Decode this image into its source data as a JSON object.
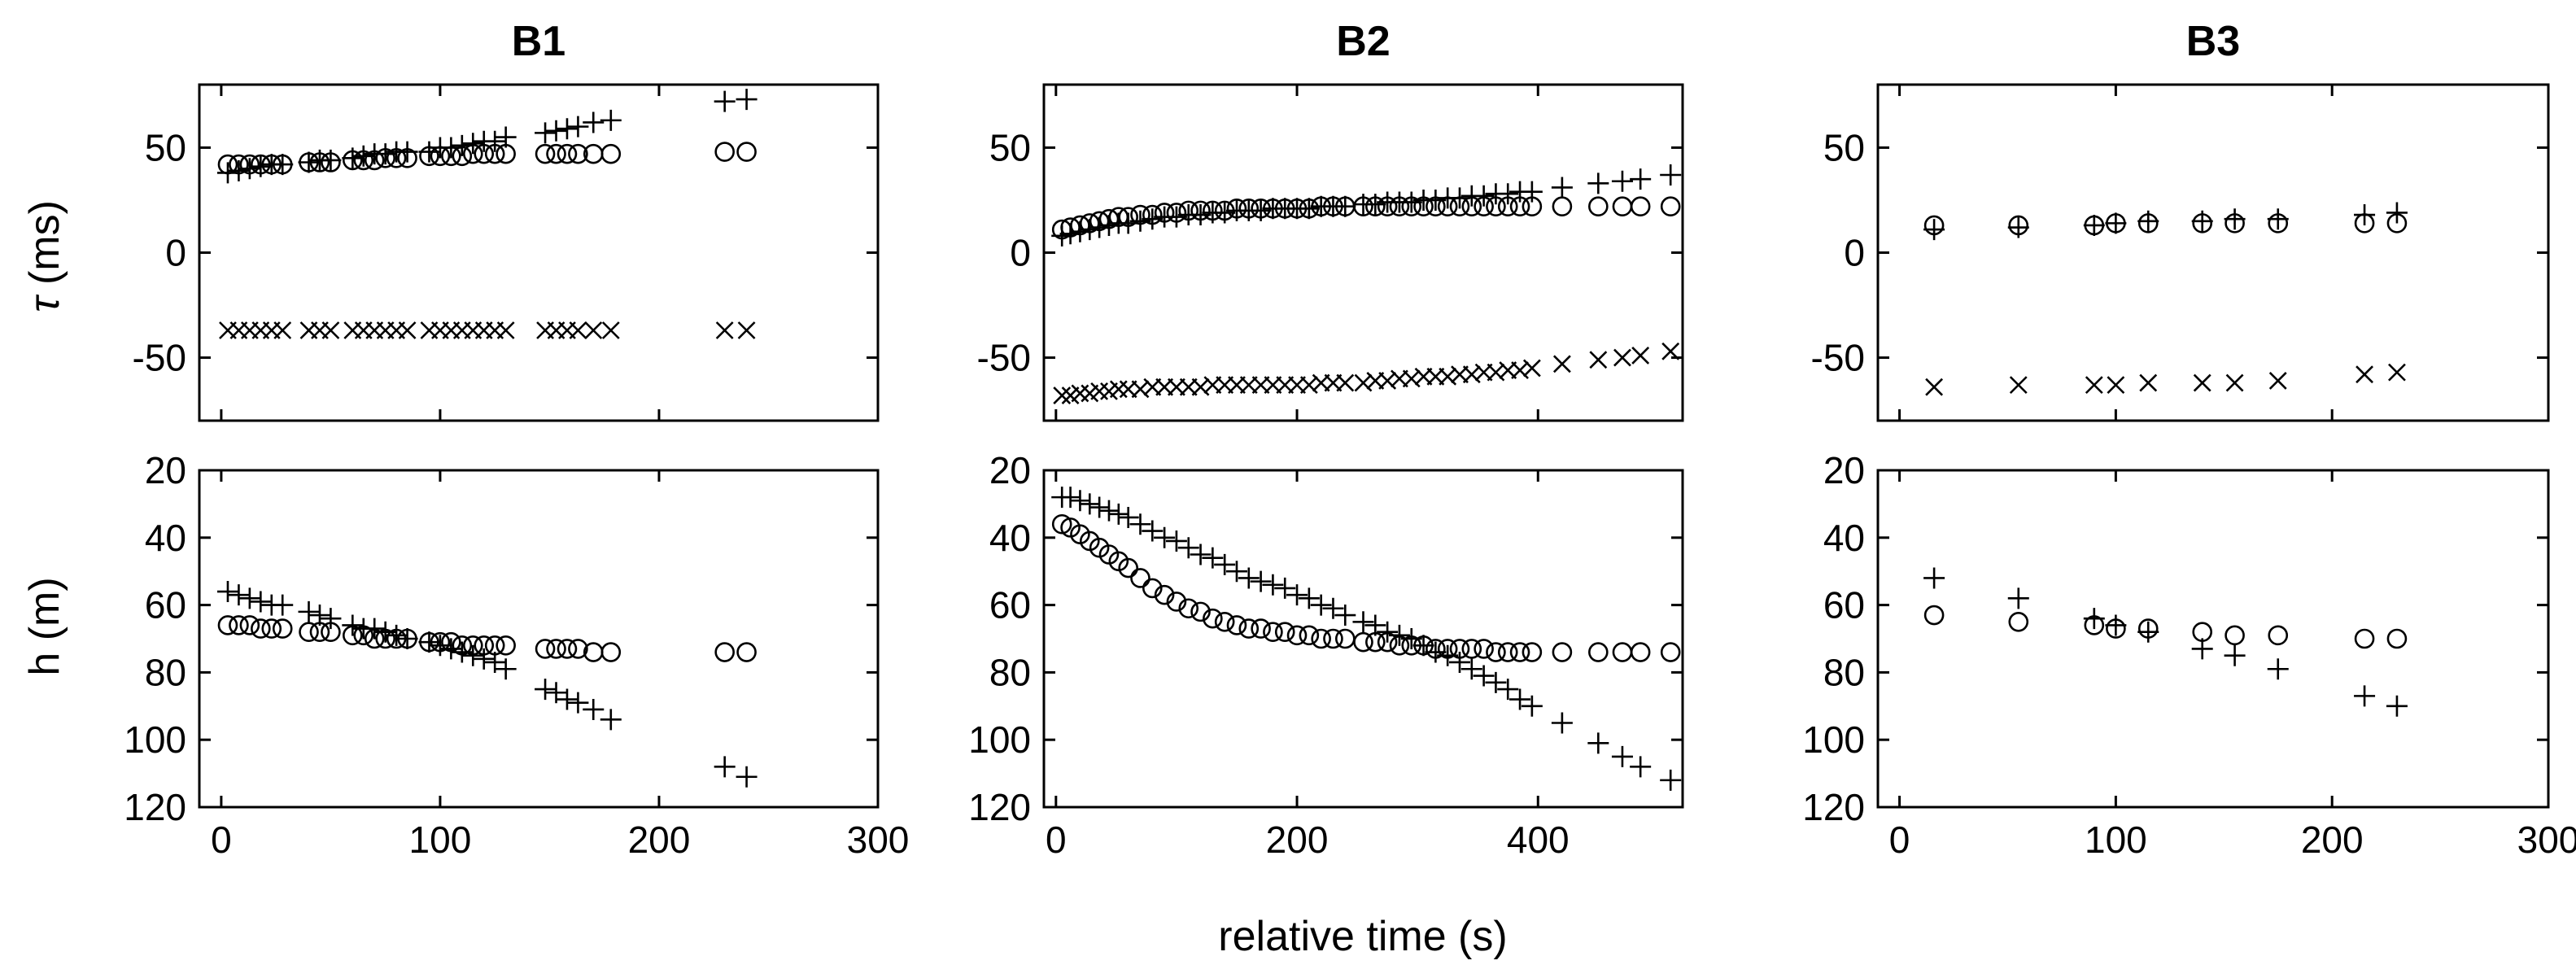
{
  "figure": {
    "xlabel": "relative time (s)",
    "panel_titles": [
      "B1",
      "B2",
      "B3"
    ],
    "row_ylabels": [
      "τ (ms)",
      "h (m)"
    ]
  },
  "chart_data": [
    {
      "id": "B1-tau",
      "type": "scatter",
      "title": "B1",
      "ylabel": "τ (ms)",
      "xlabel": "",
      "xlim": [
        -10,
        300
      ],
      "ylim": [
        -80,
        80
      ],
      "y_reversed": false,
      "xticks": [
        0,
        100,
        200,
        300
      ],
      "yticks": [
        50,
        0,
        -50
      ],
      "show_xtick_labels": false,
      "series": [
        {
          "name": "+",
          "marker": "plus",
          "x": [
            3,
            8,
            13,
            18,
            23,
            28,
            40,
            45,
            50,
            60,
            65,
            70,
            75,
            80,
            85,
            95,
            100,
            105,
            110,
            115,
            120,
            125,
            130,
            148,
            153,
            158,
            163,
            170,
            178,
            230,
            240
          ],
          "y": [
            38,
            39,
            40,
            41,
            42,
            42,
            43,
            44,
            44,
            45,
            46,
            47,
            47,
            48,
            48,
            48,
            50,
            50,
            51,
            52,
            53,
            53,
            55,
            57,
            58,
            59,
            60,
            62,
            63,
            72,
            73
          ]
        },
        {
          "name": "o",
          "marker": "circle",
          "x": [
            3,
            8,
            13,
            18,
            23,
            28,
            40,
            45,
            50,
            60,
            65,
            70,
            75,
            80,
            85,
            95,
            100,
            105,
            110,
            115,
            120,
            125,
            130,
            148,
            153,
            158,
            163,
            170,
            178,
            230,
            240
          ],
          "y": [
            42,
            42,
            42,
            42,
            42,
            42,
            43,
            43,
            43,
            44,
            44,
            44,
            45,
            45,
            45,
            46,
            46,
            46,
            46,
            47,
            47,
            47,
            47,
            47,
            47,
            47,
            47,
            47,
            47,
            48,
            48
          ]
        },
        {
          "name": "x",
          "marker": "cross",
          "x": [
            3,
            8,
            13,
            18,
            23,
            28,
            40,
            45,
            50,
            60,
            65,
            70,
            75,
            80,
            85,
            95,
            100,
            105,
            110,
            115,
            120,
            125,
            130,
            148,
            153,
            158,
            163,
            170,
            178,
            230,
            240
          ],
          "y": [
            -37,
            -37,
            -37,
            -37,
            -37,
            -37,
            -37,
            -37,
            -37,
            -37,
            -37,
            -37,
            -37,
            -37,
            -37,
            -37,
            -37,
            -37,
            -37,
            -37,
            -37,
            -37,
            -37,
            -37,
            -37,
            -37,
            -37,
            -37,
            -37,
            -37,
            -37
          ]
        }
      ]
    },
    {
      "id": "B2-tau",
      "type": "scatter",
      "title": "B2",
      "ylabel": "",
      "xlabel": "",
      "xlim": [
        -10,
        520
      ],
      "ylim": [
        -80,
        80
      ],
      "y_reversed": false,
      "xticks": [
        0,
        200,
        400
      ],
      "yticks": [
        50,
        0,
        -50
      ],
      "show_xtick_labels": false,
      "series": [
        {
          "name": "+",
          "marker": "plus",
          "x": [
            5,
            12,
            20,
            28,
            36,
            44,
            52,
            60,
            70,
            80,
            90,
            100,
            110,
            120,
            130,
            140,
            150,
            160,
            170,
            180,
            190,
            200,
            210,
            220,
            230,
            240,
            255,
            265,
            275,
            285,
            295,
            305,
            315,
            325,
            335,
            345,
            355,
            365,
            375,
            385,
            395,
            420,
            450,
            470,
            485,
            510
          ],
          "y": [
            8,
            9,
            10,
            11,
            12,
            13,
            14,
            14,
            15,
            16,
            17,
            17,
            18,
            18,
            19,
            19,
            20,
            20,
            20,
            21,
            21,
            21,
            21,
            22,
            22,
            22,
            23,
            23,
            24,
            24,
            24,
            25,
            25,
            26,
            26,
            27,
            27,
            28,
            28,
            29,
            29,
            31,
            33,
            34,
            35,
            37
          ]
        },
        {
          "name": "o",
          "marker": "circle",
          "x": [
            5,
            12,
            20,
            28,
            36,
            44,
            52,
            60,
            70,
            80,
            90,
            100,
            110,
            120,
            130,
            140,
            150,
            160,
            170,
            180,
            190,
            200,
            210,
            220,
            230,
            240,
            255,
            265,
            275,
            285,
            295,
            305,
            315,
            325,
            335,
            345,
            355,
            365,
            375,
            385,
            395,
            420,
            450,
            470,
            485,
            510
          ],
          "y": [
            11,
            12,
            13,
            14,
            15,
            16,
            17,
            17,
            18,
            18,
            19,
            19,
            20,
            20,
            20,
            20,
            21,
            21,
            21,
            21,
            21,
            21,
            21,
            22,
            22,
            22,
            22,
            22,
            22,
            22,
            22,
            22,
            22,
            22,
            22,
            22,
            22,
            22,
            22,
            22,
            22,
            22,
            22,
            22,
            22,
            22
          ]
        },
        {
          "name": "x",
          "marker": "cross",
          "x": [
            5,
            12,
            20,
            28,
            36,
            44,
            52,
            60,
            70,
            80,
            90,
            100,
            110,
            120,
            130,
            140,
            150,
            160,
            170,
            180,
            190,
            200,
            210,
            220,
            230,
            240,
            255,
            265,
            275,
            285,
            295,
            305,
            315,
            325,
            335,
            345,
            355,
            365,
            375,
            385,
            395,
            420,
            450,
            470,
            485,
            510
          ],
          "y": [
            -68,
            -68,
            -67,
            -67,
            -66,
            -66,
            -65,
            -65,
            -65,
            -64,
            -64,
            -64,
            -64,
            -64,
            -63,
            -63,
            -63,
            -63,
            -63,
            -63,
            -63,
            -63,
            -63,
            -62,
            -62,
            -62,
            -62,
            -61,
            -61,
            -60,
            -60,
            -59,
            -59,
            -59,
            -58,
            -58,
            -57,
            -57,
            -56,
            -56,
            -55,
            -53,
            -51,
            -50,
            -49,
            -47
          ]
        }
      ]
    },
    {
      "id": "B3-tau",
      "type": "scatter",
      "title": "B3",
      "ylabel": "",
      "xlabel": "",
      "xlim": [
        -10,
        300
      ],
      "ylim": [
        -80,
        80
      ],
      "y_reversed": false,
      "xticks": [
        0,
        100,
        200,
        300
      ],
      "yticks": [
        50,
        0,
        -50
      ],
      "show_xtick_labels": false,
      "series": [
        {
          "name": "+",
          "marker": "plus",
          "x": [
            16,
            55,
            90,
            100,
            115,
            140,
            155,
            175,
            215,
            230
          ],
          "y": [
            11,
            12,
            13,
            14,
            15,
            15,
            16,
            16,
            18,
            19
          ]
        },
        {
          "name": "o",
          "marker": "circle",
          "x": [
            16,
            55,
            90,
            100,
            115,
            140,
            155,
            175,
            215,
            230
          ],
          "y": [
            13,
            13,
            13,
            14,
            14,
            14,
            14,
            14,
            14,
            14
          ]
        },
        {
          "name": "x",
          "marker": "cross",
          "x": [
            16,
            55,
            90,
            100,
            115,
            140,
            155,
            175,
            215,
            230
          ],
          "y": [
            -64,
            -63,
            -63,
            -63,
            -62,
            -62,
            -62,
            -61,
            -58,
            -57
          ]
        }
      ]
    },
    {
      "id": "B1-h",
      "type": "scatter",
      "title": "",
      "ylabel": "h (m)",
      "xlabel": "",
      "xlim": [
        -10,
        300
      ],
      "ylim": [
        20,
        120
      ],
      "y_reversed": true,
      "xticks": [
        0,
        100,
        200,
        300
      ],
      "yticks": [
        20,
        40,
        60,
        80,
        100,
        120
      ],
      "show_xtick_labels": true,
      "xtick_labels": [
        "0",
        "100",
        "200",
        "300"
      ],
      "series": [
        {
          "name": "+",
          "marker": "plus",
          "x": [
            3,
            8,
            13,
            18,
            23,
            28,
            40,
            45,
            50,
            60,
            65,
            70,
            75,
            80,
            85,
            95,
            100,
            105,
            110,
            115,
            120,
            125,
            130,
            148,
            153,
            158,
            163,
            170,
            178,
            230,
            240
          ],
          "y": [
            56,
            57,
            58,
            59,
            60,
            60,
            62,
            63,
            64,
            66,
            67,
            67,
            68,
            69,
            70,
            71,
            72,
            73,
            74,
            75,
            76,
            77,
            79,
            85,
            86,
            88,
            89,
            91,
            94,
            108,
            111
          ]
        },
        {
          "name": "o",
          "marker": "circle",
          "x": [
            3,
            8,
            13,
            18,
            23,
            28,
            40,
            45,
            50,
            60,
            65,
            70,
            75,
            80,
            85,
            95,
            100,
            105,
            110,
            115,
            120,
            125,
            130,
            148,
            153,
            158,
            163,
            170,
            178,
            230,
            240
          ],
          "y": [
            66,
            66,
            66,
            67,
            67,
            67,
            68,
            68,
            68,
            69,
            69,
            70,
            70,
            70,
            70,
            71,
            71,
            71,
            72,
            72,
            72,
            72,
            72,
            73,
            73,
            73,
            73,
            74,
            74,
            74,
            74
          ]
        }
      ]
    },
    {
      "id": "B2-h",
      "type": "scatter",
      "title": "",
      "ylabel": "",
      "xlabel": "relative time (s)",
      "xlim": [
        -10,
        520
      ],
      "ylim": [
        20,
        120
      ],
      "y_reversed": true,
      "xticks": [
        0,
        200,
        400
      ],
      "yticks": [
        20,
        40,
        60,
        80,
        100,
        120
      ],
      "show_xtick_labels": true,
      "xtick_labels": [
        "0",
        "200",
        "400"
      ],
      "series": [
        {
          "name": "+",
          "marker": "plus",
          "x": [
            5,
            12,
            20,
            28,
            36,
            44,
            52,
            60,
            70,
            80,
            90,
            100,
            110,
            120,
            130,
            140,
            150,
            160,
            170,
            180,
            190,
            200,
            210,
            220,
            230,
            240,
            255,
            265,
            275,
            285,
            295,
            305,
            315,
            325,
            335,
            345,
            355,
            365,
            375,
            385,
            395,
            420,
            450,
            470,
            485,
            510
          ],
          "y": [
            28,
            28,
            29,
            30,
            31,
            32,
            33,
            34,
            36,
            38,
            40,
            41,
            43,
            45,
            46,
            48,
            50,
            52,
            53,
            54,
            55,
            57,
            58,
            60,
            61,
            63,
            65,
            66,
            68,
            69,
            70,
            72,
            74,
            75,
            77,
            79,
            81,
            83,
            85,
            88,
            90,
            95,
            101,
            105,
            108,
            112
          ]
        },
        {
          "name": "o",
          "marker": "circle",
          "x": [
            5,
            12,
            20,
            28,
            36,
            44,
            52,
            60,
            70,
            80,
            90,
            100,
            110,
            120,
            130,
            140,
            150,
            160,
            170,
            180,
            190,
            200,
            210,
            220,
            230,
            240,
            255,
            265,
            275,
            285,
            295,
            305,
            315,
            325,
            335,
            345,
            355,
            365,
            375,
            385,
            395,
            420,
            450,
            470,
            485,
            510
          ],
          "y": [
            36,
            37,
            39,
            41,
            43,
            45,
            47,
            49,
            52,
            55,
            57,
            59,
            61,
            62,
            64,
            65,
            66,
            67,
            67,
            68,
            68,
            69,
            69,
            70,
            70,
            70,
            71,
            71,
            71,
            72,
            72,
            72,
            73,
            73,
            73,
            73,
            73,
            74,
            74,
            74,
            74,
            74,
            74,
            74,
            74,
            74
          ]
        }
      ]
    },
    {
      "id": "B3-h",
      "type": "scatter",
      "title": "",
      "ylabel": "",
      "xlabel": "",
      "xlim": [
        -10,
        300
      ],
      "ylim": [
        20,
        120
      ],
      "y_reversed": true,
      "xticks": [
        0,
        100,
        200,
        300
      ],
      "yticks": [
        20,
        40,
        60,
        80,
        100,
        120
      ],
      "show_xtick_labels": true,
      "xtick_labels": [
        "0",
        "100",
        "200",
        "300"
      ],
      "series": [
        {
          "name": "+",
          "marker": "plus",
          "x": [
            16,
            55,
            90,
            100,
            115,
            140,
            155,
            175,
            215,
            230
          ],
          "y": [
            52,
            58,
            64,
            66,
            68,
            73,
            75,
            79,
            87,
            90
          ]
        },
        {
          "name": "o",
          "marker": "circle",
          "x": [
            16,
            55,
            90,
            100,
            115,
            140,
            155,
            175,
            215,
            230
          ],
          "y": [
            63,
            65,
            66,
            67,
            67,
            68,
            69,
            69,
            70,
            70
          ]
        }
      ]
    }
  ]
}
